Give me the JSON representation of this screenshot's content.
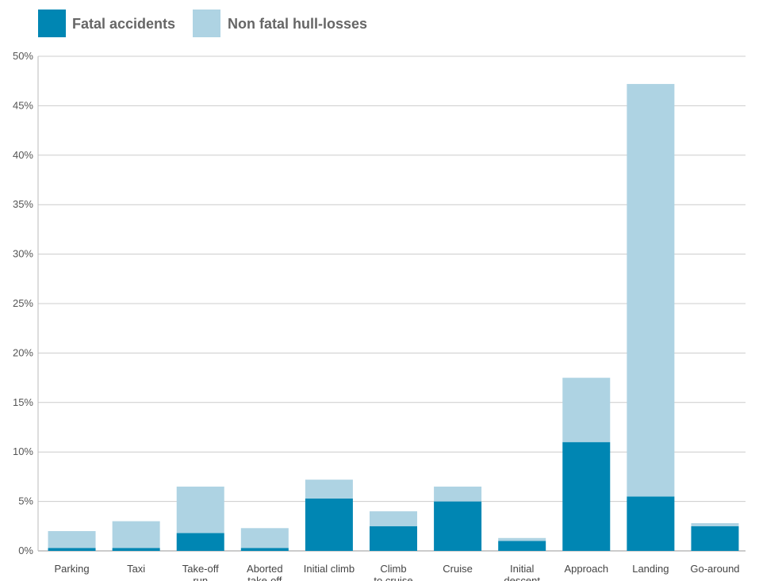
{
  "chart_data": {
    "type": "bar",
    "stacked": true,
    "title": "",
    "xlabel": "",
    "ylabel": "",
    "ylim": [
      0,
      50
    ],
    "yticks": [
      "0%",
      "5%",
      "10%",
      "15%",
      "20%",
      "25%",
      "30%",
      "35%",
      "40%",
      "45%",
      "50%"
    ],
    "ytick_values": [
      0,
      5,
      10,
      15,
      20,
      25,
      30,
      35,
      40,
      45,
      50
    ],
    "grid": true,
    "legend_position": "top-left",
    "categories": [
      [
        "Parking"
      ],
      [
        "Taxi"
      ],
      [
        "Take-off",
        "run"
      ],
      [
        "Aborted",
        "take-off"
      ],
      [
        "Initial climb"
      ],
      [
        "Climb",
        "to cruise"
      ],
      [
        "Cruise"
      ],
      [
        "Initial",
        "descent"
      ],
      [
        "Approach"
      ],
      [
        "Landing"
      ],
      [
        "Go-around"
      ]
    ],
    "series": [
      {
        "name": "Fatal accidents",
        "color": "#0086b3",
        "values": [
          0.3,
          0.3,
          1.8,
          0.3,
          5.3,
          2.5,
          5.0,
          1.0,
          11.0,
          5.5,
          2.5
        ]
      },
      {
        "name": "Non fatal hull-losses",
        "color": "#aed3e3",
        "values": [
          1.7,
          2.7,
          4.7,
          2.0,
          1.9,
          1.5,
          1.5,
          0.3,
          6.5,
          41.7,
          0.3
        ]
      }
    ]
  }
}
